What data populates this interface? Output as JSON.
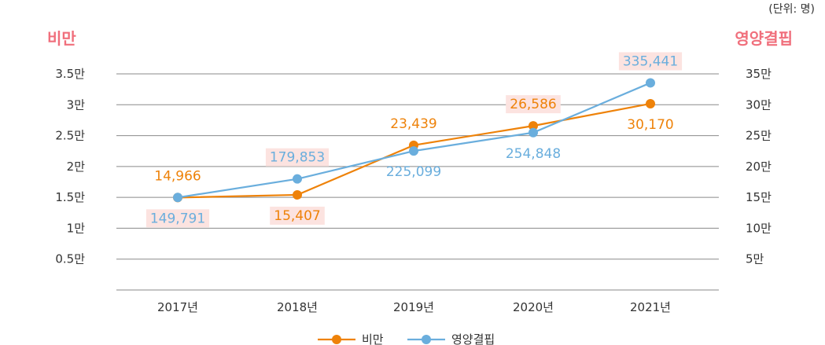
{
  "chart_data": {
    "type": "line",
    "unit_note": "(단위: 명)",
    "left_axis_title": "비만",
    "right_axis_title": "영양결핍",
    "categories": [
      "2017년",
      "2018년",
      "2019년",
      "2020년",
      "2021년"
    ],
    "left_axis": {
      "range": [
        0,
        35000
      ],
      "ticks": [
        5000,
        10000,
        15000,
        20000,
        25000,
        30000,
        35000
      ],
      "tick_labels": [
        "0.5만",
        "1만",
        "1.5만",
        "2만",
        "2.5만",
        "3만",
        "3.5만"
      ]
    },
    "right_axis": {
      "range": [
        0,
        350000
      ],
      "ticks": [
        50000,
        100000,
        150000,
        200000,
        250000,
        300000,
        350000
      ],
      "tick_labels": [
        "5만",
        "10만",
        "15만",
        "20만",
        "25만",
        "30만",
        "35만"
      ]
    },
    "series": [
      {
        "name": "비만",
        "axis": "left",
        "color": "#ee8209",
        "values": [
          14966,
          15407,
          23439,
          26586,
          30170
        ],
        "labels": [
          "14,966",
          "15,407",
          "23,439",
          "26,586",
          "30,170"
        ]
      },
      {
        "name": "영양결핍",
        "axis": "right",
        "color": "#6aaedd",
        "values": [
          149791,
          179853,
          225099,
          254848,
          335441
        ],
        "labels": [
          "149,791",
          "179,853",
          "225,099",
          "254,848",
          "335,441"
        ]
      }
    ],
    "colors": {
      "left_title": "#f06f7c",
      "right_title": "#f06f7c",
      "label_bg": "#fce3e0",
      "grid": "#8a8a8a"
    },
    "grid": true,
    "legend_position": "bottom-center"
  }
}
